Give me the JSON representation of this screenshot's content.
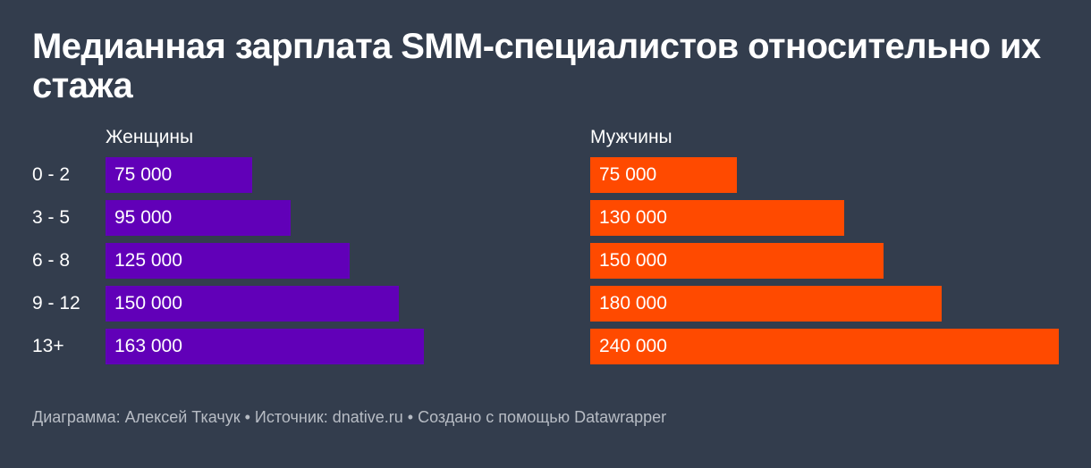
{
  "title": "Медианная зарплата SMM-специалистов относительно их стажа",
  "footer": {
    "text": "Диаграмма: Алексей Ткачук • Источник: dnative.ru • Создано с помощью Datawrapper"
  },
  "chart_data": {
    "type": "bar",
    "orientation": "horizontal",
    "layout": "split-panels",
    "categories": [
      "0 - 2",
      "3 - 5",
      "6 - 8",
      "9 - 12",
      "13+"
    ],
    "series": [
      {
        "name": "Женщины",
        "color": "#6100b8",
        "values": [
          75000,
          95000,
          125000,
          150000,
          163000
        ],
        "labels": [
          "75 000",
          "95 000",
          "125 000",
          "150 000",
          "163 000"
        ]
      },
      {
        "name": "Мужчины",
        "color": "#ff4a00",
        "values": [
          75000,
          130000,
          150000,
          180000,
          240000
        ],
        "labels": [
          "75 000",
          "130 000",
          "150 000",
          "180 000",
          "240 000"
        ]
      }
    ],
    "xlim": [
      0,
      240000
    ],
    "grid": false,
    "legend": "none"
  }
}
